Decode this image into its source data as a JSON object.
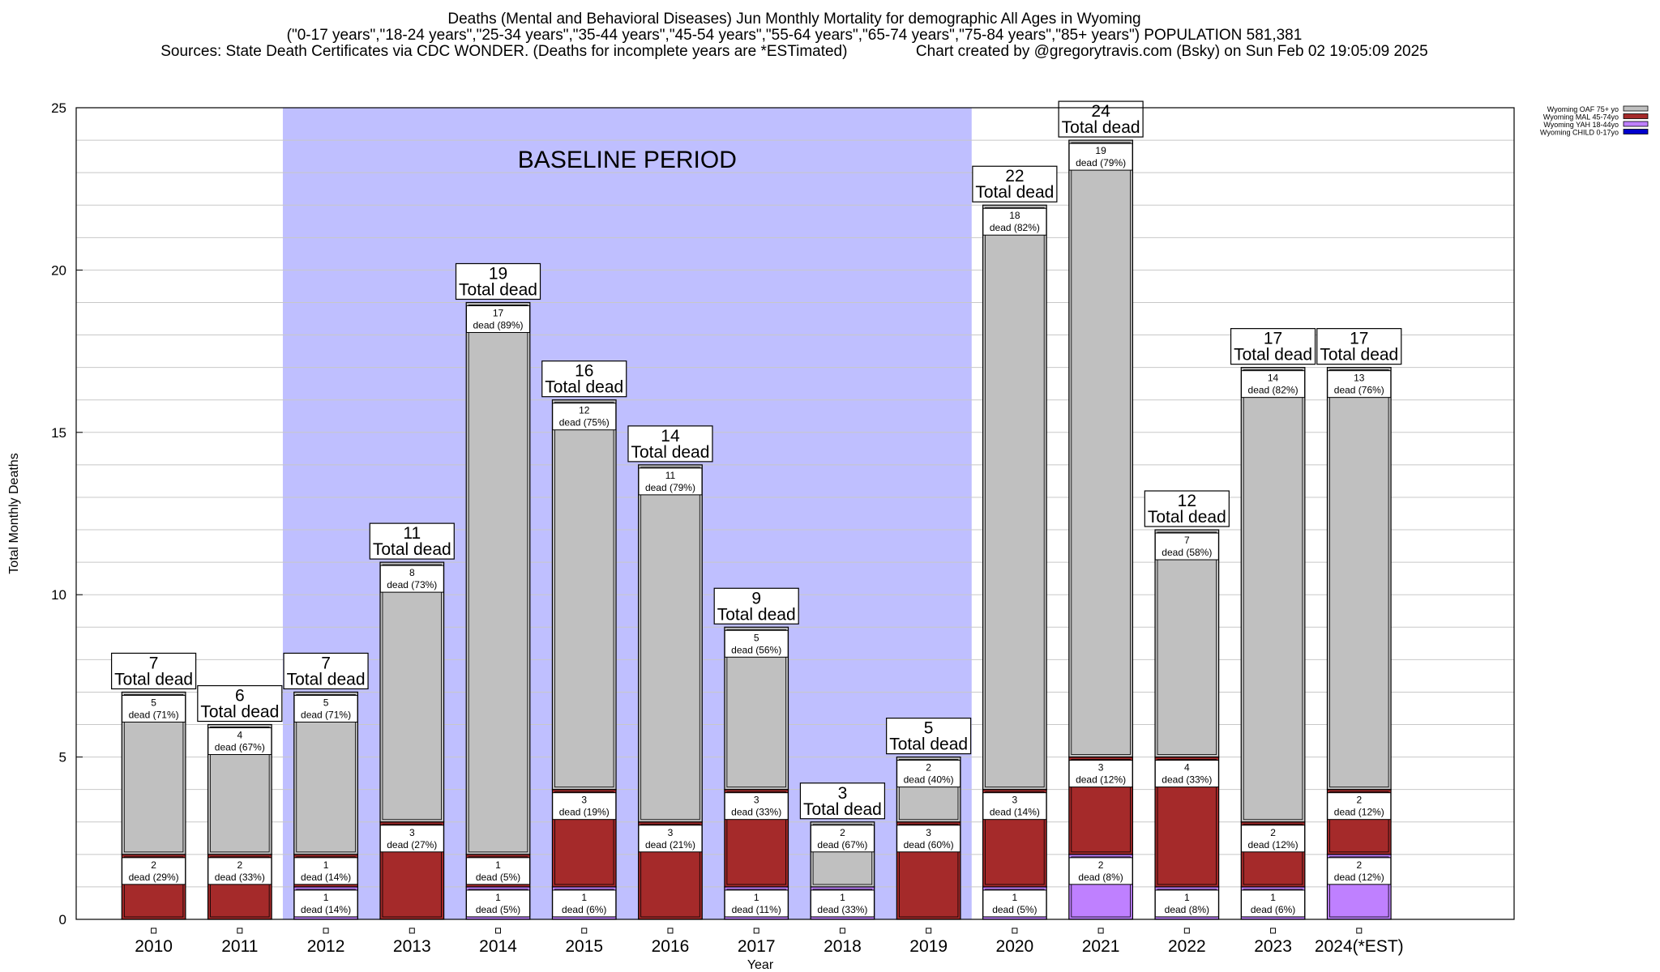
{
  "title": {
    "line1": "Deaths (Mental and Behavioral Diseases) Jun Monthly Mortality for demographic All Ages in Wyoming",
    "line2": "(\"0-17 years\",\"18-24 years\",\"25-34 years\",\"35-44 years\",\"45-54 years\",\"55-64 years\",\"65-74 years\",\"75-84 years\",\"85+ years\") POPULATION 581,381",
    "line3": "Sources: State Death Certificates via CDC WONDER. (Deaths for incomplete years are *ESTimated)                Chart created by @gregorytravis.com (Bsky) on Sun Feb 02 19:05:09 2025"
  },
  "colors": {
    "baseline": "#bfbfff",
    "oaf": "#c0c0c0",
    "mal": "#a52a2a",
    "yah": "#bf80ff",
    "child": "#0000cd"
  },
  "chart_data": {
    "type": "bar",
    "stacked": true,
    "xlabel": "Year",
    "ylabel": "Total Monthly Deaths",
    "ylim": [
      0,
      25
    ],
    "yticks": [
      0,
      5,
      10,
      15,
      20,
      25
    ],
    "grid": true,
    "legend_position": "top-right",
    "baseline_label": "BASELINE PERIOD",
    "baseline_range": [
      "2012",
      "2019"
    ],
    "total_suffix": "Total dead",
    "categories": [
      "2010",
      "2011",
      "2012",
      "2013",
      "2014",
      "2015",
      "2016",
      "2017",
      "2018",
      "2019",
      "2020",
      "2021",
      "2022",
      "2023",
      "2024(*EST)"
    ],
    "totals": [
      7,
      6,
      7,
      11,
      19,
      16,
      14,
      9,
      3,
      5,
      22,
      24,
      12,
      17,
      17
    ],
    "series": [
      {
        "name": "Wyoming CHILD 0-17yo",
        "color_key": "child",
        "values": [
          0,
          0,
          0,
          0,
          0,
          0,
          0,
          0,
          0,
          0,
          0,
          0,
          0,
          0,
          0
        ],
        "labels": [
          "",
          "",
          "",
          "",
          "",
          "",
          "",
          "",
          "",
          "",
          "",
          "",
          "",
          "",
          ""
        ]
      },
      {
        "name": "Wyoming YAH 18-44yo",
        "color_key": "yah",
        "values": [
          0,
          0,
          1,
          0,
          1,
          1,
          0,
          1,
          1,
          0,
          1,
          2,
          1,
          1,
          2
        ],
        "labels": [
          "",
          "",
          "dead (14%)",
          "",
          "dead (5%)",
          "dead (6%)",
          "",
          "dead (11%)",
          "dead (33%)",
          "",
          "dead (5%)",
          "dead (8%)",
          "dead (8%)",
          "dead (6%)",
          "dead (12%)"
        ]
      },
      {
        "name": "Wyoming MAL 45-74yo",
        "color_key": "mal",
        "values": [
          2,
          2,
          1,
          3,
          1,
          3,
          3,
          3,
          0,
          3,
          3,
          3,
          4,
          2,
          2
        ],
        "labels": [
          "dead (29%)",
          "dead (33%)",
          "dead (14%)",
          "dead (27%)",
          "dead (5%)",
          "dead (19%)",
          "dead (21%)",
          "dead (33%)",
          "",
          "dead (60%)",
          "dead (14%)",
          "dead (12%)",
          "dead (33%)",
          "dead (12%)",
          "dead (12%)"
        ]
      },
      {
        "name": "Wyoming OAF 75+ yo",
        "color_key": "oaf",
        "values": [
          5,
          4,
          5,
          8,
          17,
          12,
          11,
          5,
          2,
          2,
          18,
          19,
          7,
          14,
          13
        ],
        "labels": [
          "dead (71%)",
          "dead (67%)",
          "dead (71%)",
          "dead (73%)",
          "dead (89%)",
          "dead (75%)",
          "dead (79%)",
          "dead (56%)",
          "dead (67%)",
          "dead (40%)",
          "dead (82%)",
          "dead (79%)",
          "dead (58%)",
          "dead (82%)",
          "dead (76%)"
        ]
      }
    ],
    "legend_order": [
      "Wyoming OAF 75+ yo",
      "Wyoming MAL 45-74yo",
      "Wyoming YAH 18-44yo",
      "Wyoming CHILD 0-17yo"
    ]
  }
}
